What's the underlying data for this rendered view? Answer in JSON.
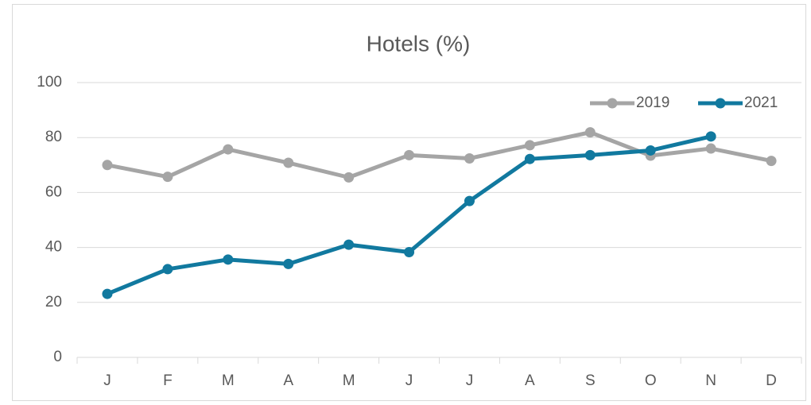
{
  "chart_data": {
    "type": "line",
    "title": "Hotels (%)",
    "categories": [
      "J",
      "F",
      "M",
      "A",
      "M",
      "J",
      "J",
      "A",
      "S",
      "O",
      "N",
      "D"
    ],
    "series": [
      {
        "name": "2019",
        "color": "#a5a5a5",
        "values": [
          70,
          65.7,
          75.7,
          70.8,
          65.5,
          73.6,
          72.4,
          77.2,
          81.9,
          73.4,
          76,
          71.5
        ]
      },
      {
        "name": "2021",
        "color": "#11799f",
        "values": [
          23.1,
          32.1,
          35.6,
          34,
          41,
          38.3,
          56.9,
          72.2,
          73.6,
          75.3,
          80.4,
          null
        ]
      }
    ],
    "ylim": [
      0,
      100
    ],
    "yticks": [
      0,
      20,
      40,
      60,
      80,
      100
    ],
    "grid": true,
    "legend": "top-right"
  }
}
